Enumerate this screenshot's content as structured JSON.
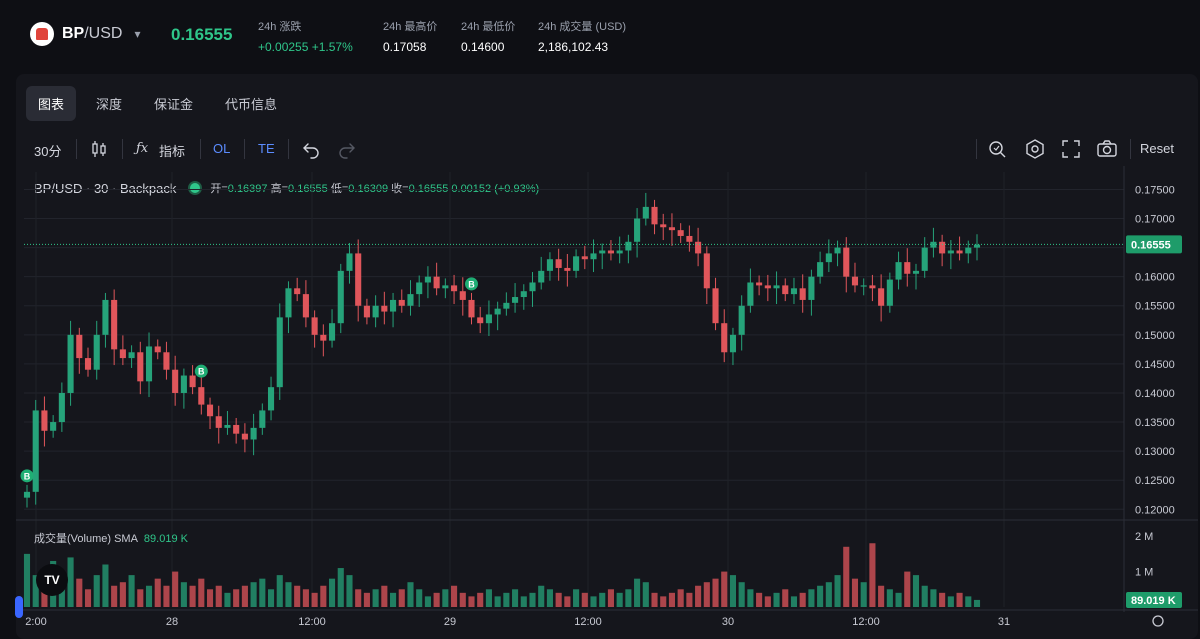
{
  "header": {
    "pair_base": "BP",
    "pair_quote": "/USD",
    "last_price": "0.16555",
    "stats": [
      {
        "label": "24h 涨跌",
        "value": "+0.00255 +1.57%",
        "green": true
      },
      {
        "label": "24h 最高价",
        "value": "0.17058",
        "green": false
      },
      {
        "label": "24h 最低价",
        "value": "0.14600",
        "green": false
      },
      {
        "label": "24h 成交量 (USD)",
        "value": "2,186,102.43",
        "green": false
      }
    ]
  },
  "tabs": [
    {
      "label": "图表",
      "active": true
    },
    {
      "label": "深度",
      "active": false
    },
    {
      "label": "保证金",
      "active": false
    },
    {
      "label": "代币信息",
      "active": false
    }
  ],
  "toolbar": {
    "interval": "30分",
    "indicators": "指标",
    "ol": "OL",
    "te": "TE",
    "reset": "Reset"
  },
  "legend": {
    "symbol": "BP/USD · 30 · Backpack",
    "open_label": "开=",
    "open": "0.16397",
    "high_label": "高=",
    "high": "0.16555",
    "low_label": "低=",
    "low": "0.16309",
    "close_label": "收=",
    "close": "0.16555",
    "change": "0.00152 (+0.93%)"
  },
  "volume_legend": {
    "label": "成交量(Volume) SMA",
    "value": "89.019 K"
  },
  "colors": {
    "up": "#26a37a",
    "down": "#e0565b",
    "accent": "#2fc68a",
    "blue": "#5b8cff"
  },
  "chart_data": {
    "type": "candlestick",
    "price_ticks": [
      "0.17500",
      "0.17000",
      "0.16500",
      "0.16000",
      "0.15500",
      "0.15000",
      "0.14500",
      "0.14000",
      "0.13500",
      "0.13000",
      "0.12500",
      "0.12000"
    ],
    "price_range": [
      0.1185,
      0.178
    ],
    "current_price_label": "0.16555",
    "current_price": 0.16555,
    "volume_ticks": [
      "2 M",
      "1 M"
    ],
    "volume_range": [
      0,
      2400000
    ],
    "volume_sma_label": "89.019 K",
    "x_labels": [
      "2:00",
      "28",
      "12:00",
      "29",
      "12:00",
      "30",
      "12:00",
      "31"
    ],
    "buy_markers": [
      0,
      20,
      51,
      139
    ],
    "closes": [
      0.123,
      0.137,
      0.1335,
      0.135,
      0.14,
      0.15,
      0.146,
      0.144,
      0.15,
      0.156,
      0.1475,
      0.146,
      0.147,
      0.142,
      0.148,
      0.147,
      0.144,
      0.14,
      0.143,
      0.141,
      0.138,
      0.136,
      0.134,
      0.1345,
      0.133,
      0.132,
      0.134,
      0.137,
      0.141,
      0.153,
      0.158,
      0.157,
      0.153,
      0.15,
      0.149,
      0.152,
      0.161,
      0.164,
      0.155,
      0.153,
      0.155,
      0.154,
      0.156,
      0.155,
      0.157,
      0.159,
      0.16,
      0.158,
      0.1585,
      0.1575,
      0.156,
      0.153,
      0.152,
      0.1535,
      0.1545,
      0.1555,
      0.1565,
      0.1575,
      0.159,
      0.161,
      0.163,
      0.1615,
      0.161,
      0.1635,
      0.163,
      0.164,
      0.1645,
      0.164,
      0.1645,
      0.166,
      0.17,
      0.172,
      0.169,
      0.1685,
      0.168,
      0.167,
      0.166,
      0.164,
      0.158,
      0.152,
      0.147,
      0.15,
      0.155,
      0.159,
      0.1585,
      0.158,
      0.1585,
      0.157,
      0.158,
      0.156,
      0.16,
      0.1625,
      0.164,
      0.165,
      0.16,
      0.1585,
      0.1585,
      0.158,
      0.155,
      0.1595,
      0.1625,
      0.1605,
      0.161,
      0.165,
      0.166,
      0.164,
      0.1645,
      0.164,
      0.165,
      0.1655
    ],
    "volumes": [
      1500000,
      900000,
      1100000,
      1300000,
      700000,
      1400000,
      800000,
      500000,
      900000,
      1200000,
      600000,
      700000,
      900000,
      500000,
      600000,
      800000,
      600000,
      1000000,
      700000,
      600000,
      800000,
      500000,
      600000,
      400000,
      500000,
      600000,
      700000,
      800000,
      500000,
      900000,
      700000,
      600000,
      500000,
      400000,
      600000,
      800000,
      1100000,
      900000,
      500000,
      400000,
      500000,
      600000,
      400000,
      500000,
      700000,
      500000,
      300000,
      400000,
      500000,
      600000,
      400000,
      300000,
      400000,
      500000,
      300000,
      400000,
      500000,
      300000,
      400000,
      600000,
      500000,
      400000,
      300000,
      500000,
      400000,
      300000,
      400000,
      500000,
      400000,
      500000,
      800000,
      700000,
      400000,
      300000,
      400000,
      500000,
      400000,
      600000,
      700000,
      800000,
      1000000,
      900000,
      700000,
      500000,
      400000,
      300000,
      400000,
      500000,
      300000,
      400000,
      500000,
      600000,
      700000,
      900000,
      1700000,
      800000,
      700000,
      1800000,
      600000,
      500000,
      400000,
      1000000,
      900000,
      600000,
      500000,
      400000,
      300000,
      400000,
      300000,
      200000
    ]
  }
}
